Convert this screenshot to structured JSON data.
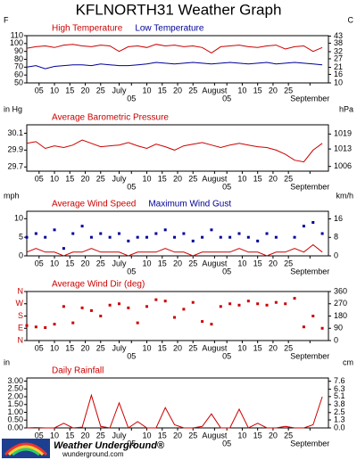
{
  "title": "KFLNORTH31 Weather Graph",
  "footer": {
    "brand": "Weather Underground®",
    "site": "wunderground.com"
  },
  "chart_data": [
    {
      "type": "line",
      "ylabel": "F",
      "y2label": "C",
      "xlim": [
        0,
        98
      ],
      "x": [
        0,
        3,
        6,
        9,
        12,
        15,
        18,
        21,
        24,
        27,
        30,
        33,
        36,
        39,
        42,
        45,
        48,
        51,
        54,
        57,
        60,
        63,
        66,
        69,
        72,
        75,
        78,
        81,
        84,
        87,
        90,
        93,
        96
      ],
      "xticks": [
        {
          "value": 4,
          "label": "05"
        },
        {
          "value": 9,
          "label": "10"
        },
        {
          "value": 14,
          "label": "15"
        },
        {
          "value": 19,
          "label": "20"
        },
        {
          "value": 24,
          "label": "25"
        },
        {
          "value": 30,
          "label": "July"
        },
        {
          "value": 34,
          "label": "05"
        },
        {
          "value": 39,
          "label": "10"
        },
        {
          "value": 44,
          "label": "15"
        },
        {
          "value": 49,
          "label": "20"
        },
        {
          "value": 54,
          "label": "25"
        },
        {
          "value": 61,
          "label": "August"
        },
        {
          "value": 65,
          "label": "05"
        },
        {
          "value": 70,
          "label": "10"
        },
        {
          "value": 75,
          "label": "15"
        },
        {
          "value": 80,
          "label": "20"
        },
        {
          "value": 85,
          "label": "25"
        },
        {
          "value": 92,
          "label": "September"
        }
      ],
      "ylim": [
        50,
        110
      ],
      "yticks": [
        50,
        60,
        70,
        80,
        90,
        100,
        110
      ],
      "y2lim": [
        10,
        43.3
      ],
      "y2ticks": [
        10,
        16,
        21,
        27,
        32,
        38,
        43
      ],
      "series": [
        {
          "name": "High Temperature",
          "color": "#cc0000",
          "style": "line",
          "values": [
            94,
            96,
            97,
            95,
            98,
            99,
            97,
            96,
            98,
            97,
            90,
            96,
            97,
            95,
            99,
            97,
            98,
            96,
            97,
            95,
            88,
            96,
            97,
            98,
            96,
            95,
            97,
            98,
            93,
            96,
            97,
            90,
            95
          ]
        },
        {
          "name": "Low Temperature",
          "color": "#000099",
          "style": "line",
          "values": [
            70,
            72,
            68,
            71,
            72,
            73,
            73,
            72,
            74,
            73,
            72,
            72,
            73,
            74,
            76,
            75,
            74,
            75,
            76,
            75,
            74,
            75,
            76,
            75,
            74,
            75,
            76,
            74,
            75,
            76,
            75,
            74,
            73
          ]
        }
      ]
    },
    {
      "type": "line",
      "ylabel": "in Hg",
      "y2label": "hPa",
      "xlim": [
        0,
        98
      ],
      "x": [
        0,
        3,
        6,
        9,
        12,
        15,
        18,
        21,
        24,
        27,
        30,
        33,
        36,
        39,
        42,
        45,
        48,
        51,
        54,
        57,
        60,
        63,
        66,
        69,
        72,
        75,
        78,
        81,
        84,
        87,
        90,
        93,
        96
      ],
      "xticks": [
        {
          "value": 4,
          "label": "05"
        },
        {
          "value": 9,
          "label": "10"
        },
        {
          "value": 14,
          "label": "15"
        },
        {
          "value": 19,
          "label": "20"
        },
        {
          "value": 24,
          "label": "25"
        },
        {
          "value": 30,
          "label": "July"
        },
        {
          "value": 34,
          "label": "05"
        },
        {
          "value": 39,
          "label": "10"
        },
        {
          "value": 44,
          "label": "15"
        },
        {
          "value": 49,
          "label": "20"
        },
        {
          "value": 54,
          "label": "25"
        },
        {
          "value": 61,
          "label": "August"
        },
        {
          "value": 65,
          "label": "05"
        },
        {
          "value": 70,
          "label": "10"
        },
        {
          "value": 75,
          "label": "15"
        },
        {
          "value": 80,
          "label": "20"
        },
        {
          "value": 85,
          "label": "25"
        },
        {
          "value": 92,
          "label": "September"
        }
      ],
      "ylim": [
        29.65,
        30.2
      ],
      "yticks": [
        29.7,
        29.9,
        30.1
      ],
      "y2lim": [
        1004.1,
        1022.7
      ],
      "y2ticks": [
        1006,
        1013,
        1019
      ],
      "series": [
        {
          "name": "Average Barometric Pressure",
          "color": "#cc0000",
          "style": "line",
          "values": [
            29.98,
            30.0,
            29.92,
            29.95,
            29.93,
            29.96,
            30.02,
            29.98,
            29.94,
            29.95,
            29.96,
            29.99,
            29.95,
            29.92,
            29.97,
            29.94,
            29.9,
            29.95,
            29.97,
            29.99,
            29.96,
            29.93,
            29.96,
            29.98,
            29.96,
            29.94,
            29.93,
            29.9,
            29.85,
            29.78,
            29.76,
            29.9,
            29.98
          ]
        }
      ]
    },
    {
      "type": "line",
      "ylabel": "mph",
      "y2label": "km/h",
      "xlim": [
        0,
        98
      ],
      "x": [
        0,
        3,
        6,
        9,
        12,
        15,
        18,
        21,
        24,
        27,
        30,
        33,
        36,
        39,
        42,
        45,
        48,
        51,
        54,
        57,
        60,
        63,
        66,
        69,
        72,
        75,
        78,
        81,
        84,
        87,
        90,
        93,
        96
      ],
      "xticks": [
        {
          "value": 4,
          "label": "05"
        },
        {
          "value": 9,
          "label": "10"
        },
        {
          "value": 14,
          "label": "15"
        },
        {
          "value": 19,
          "label": "20"
        },
        {
          "value": 24,
          "label": "25"
        },
        {
          "value": 30,
          "label": "July"
        },
        {
          "value": 34,
          "label": "05"
        },
        {
          "value": 39,
          "label": "10"
        },
        {
          "value": 44,
          "label": "15"
        },
        {
          "value": 49,
          "label": "20"
        },
        {
          "value": 54,
          "label": "25"
        },
        {
          "value": 61,
          "label": "August"
        },
        {
          "value": 65,
          "label": "05"
        },
        {
          "value": 70,
          "label": "10"
        },
        {
          "value": 75,
          "label": "15"
        },
        {
          "value": 80,
          "label": "20"
        },
        {
          "value": 85,
          "label": "25"
        },
        {
          "value": 92,
          "label": "September"
        }
      ],
      "ylim": [
        0,
        12
      ],
      "yticks": [
        0,
        5,
        10
      ],
      "y2lim": [
        0,
        19.3
      ],
      "y2ticks": [
        0,
        8,
        16
      ],
      "series": [
        {
          "name": "Average Wind Speed",
          "color": "#cc0000",
          "style": "line",
          "values": [
            1,
            2,
            1,
            1,
            0,
            1,
            1,
            2,
            1,
            1,
            1,
            0,
            1,
            1,
            1,
            2,
            1,
            1,
            0,
            1,
            1,
            1,
            1,
            2,
            1,
            1,
            0,
            1,
            1,
            2,
            1,
            3,
            1
          ]
        },
        {
          "name": "Maximum Wind Gust",
          "color": "#000099",
          "style": "points",
          "values": [
            5,
            6,
            5,
            7,
            2,
            6,
            8,
            5,
            6,
            5,
            6,
            4,
            5,
            5,
            6,
            7,
            5,
            6,
            4,
            5,
            7,
            5,
            5,
            6,
            5,
            4,
            6,
            5,
            null,
            5,
            8,
            9,
            6
          ]
        }
      ]
    },
    {
      "type": "scatter",
      "xlim": [
        0,
        98
      ],
      "ytick_color": "#cc0000",
      "x": [
        0,
        3,
        6,
        9,
        12,
        15,
        18,
        21,
        24,
        27,
        30,
        33,
        36,
        39,
        42,
        45,
        48,
        51,
        54,
        57,
        60,
        63,
        66,
        69,
        72,
        75,
        78,
        81,
        84,
        87,
        90,
        93,
        96
      ],
      "xticks": [
        {
          "value": 4,
          "label": "05"
        },
        {
          "value": 9,
          "label": "10"
        },
        {
          "value": 14,
          "label": "15"
        },
        {
          "value": 19,
          "label": "20"
        },
        {
          "value": 24,
          "label": "25"
        },
        {
          "value": 30,
          "label": "July"
        },
        {
          "value": 34,
          "label": "05"
        },
        {
          "value": 39,
          "label": "10"
        },
        {
          "value": 44,
          "label": "15"
        },
        {
          "value": 49,
          "label": "20"
        },
        {
          "value": 54,
          "label": "25"
        },
        {
          "value": 61,
          "label": "August"
        },
        {
          "value": 65,
          "label": "05"
        },
        {
          "value": 70,
          "label": "10"
        },
        {
          "value": 75,
          "label": "15"
        },
        {
          "value": 80,
          "label": "20"
        },
        {
          "value": 85,
          "label": "25"
        },
        {
          "value": 92,
          "label": "September"
        }
      ],
      "ylim": [
        0,
        360
      ],
      "yticks": [
        {
          "value": 0,
          "label": "N"
        },
        {
          "value": 90,
          "label": "E"
        },
        {
          "value": 180,
          "label": "S"
        },
        {
          "value": 270,
          "label": "W"
        },
        {
          "value": 360,
          "label": "N"
        }
      ],
      "y2lim": [
        0,
        360
      ],
      "y2ticks": [
        0,
        90,
        180,
        270,
        360
      ],
      "series": [
        {
          "name": "Average Wind Dir (deg)",
          "color": "#cc0000",
          "style": "points",
          "values": [
            110,
            100,
            95,
            120,
            250,
            130,
            240,
            220,
            180,
            260,
            270,
            240,
            130,
            250,
            300,
            290,
            170,
            230,
            280,
            140,
            120,
            250,
            270,
            260,
            290,
            270,
            260,
            280,
            270,
            310,
            100,
            180,
            90
          ]
        }
      ]
    },
    {
      "type": "line",
      "ylabel": "in",
      "y2label": "cm",
      "xlim": [
        0,
        98
      ],
      "x": [
        0,
        3,
        6,
        9,
        12,
        15,
        18,
        21,
        24,
        27,
        30,
        33,
        36,
        39,
        42,
        45,
        48,
        51,
        54,
        57,
        60,
        63,
        66,
        69,
        72,
        75,
        78,
        81,
        84,
        87,
        90,
        93,
        96
      ],
      "xticks": [
        {
          "value": 4,
          "label": "05"
        },
        {
          "value": 9,
          "label": "10"
        },
        {
          "value": 14,
          "label": "15"
        },
        {
          "value": 19,
          "label": "20"
        },
        {
          "value": 24,
          "label": "25"
        },
        {
          "value": 30,
          "label": "July"
        },
        {
          "value": 34,
          "label": "05"
        },
        {
          "value": 39,
          "label": "10"
        },
        {
          "value": 44,
          "label": "15"
        },
        {
          "value": 49,
          "label": "20"
        },
        {
          "value": 54,
          "label": "25"
        },
        {
          "value": 61,
          "label": "August"
        },
        {
          "value": 65,
          "label": "05"
        },
        {
          "value": 70,
          "label": "10"
        },
        {
          "value": 75,
          "label": "15"
        },
        {
          "value": 80,
          "label": "20"
        },
        {
          "value": 85,
          "label": "25"
        },
        {
          "value": 92,
          "label": "September"
        }
      ],
      "ylim": [
        0,
        3.2
      ],
      "yticks": [
        {
          "value": 0,
          "label": "0.00"
        },
        {
          "value": 0.5,
          "label": "0.50"
        },
        {
          "value": 1,
          "label": "1.00"
        },
        {
          "value": 1.5,
          "label": "1.50"
        },
        {
          "value": 2,
          "label": "2.00"
        },
        {
          "value": 2.5,
          "label": "2.50"
        },
        {
          "value": 3,
          "label": "3.00"
        }
      ],
      "y2lim": [
        0,
        8.13
      ],
      "y2ticks": [
        {
          "value": 0,
          "label": "0.0"
        },
        1.3,
        2.5,
        3.8,
        5.1,
        6.3,
        7.6
      ],
      "series": [
        {
          "name": "Daily Rainfall",
          "color": "#cc0000",
          "style": "line",
          "values": [
            0,
            0.02,
            0,
            0,
            0.3,
            0,
            0.05,
            2.1,
            0.1,
            0,
            1.6,
            0,
            0.4,
            0,
            0,
            1.3,
            0.2,
            0,
            0,
            0.1,
            0.9,
            0,
            0,
            1.2,
            0,
            0.3,
            0,
            0,
            0.1,
            0,
            0,
            0.2,
            2.0
          ]
        }
      ]
    }
  ]
}
